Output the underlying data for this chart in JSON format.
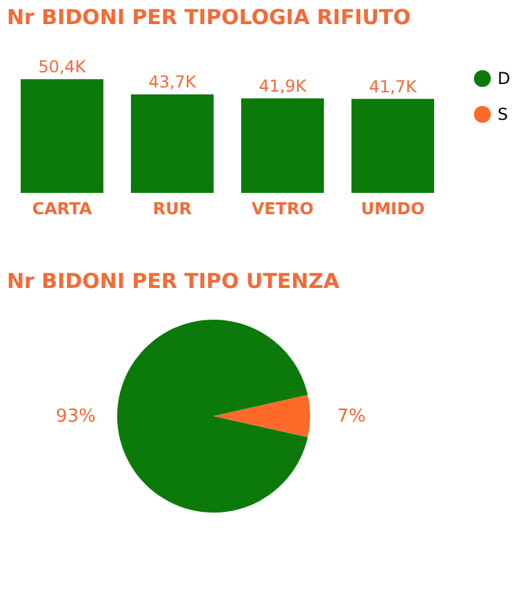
{
  "chart_data": [
    {
      "type": "bar",
      "title": "Nr BIDONI PER TIPOLOGIA RIFIUTO",
      "categories": [
        "CARTA",
        "RUR",
        "VETRO",
        "UMIDO"
      ],
      "values": [
        50.4,
        43.7,
        41.9,
        41.7
      ],
      "value_labels": [
        "50,4K",
        "43,7K",
        "41,9K",
        "41,7K"
      ],
      "color": "#0b7a0b"
    },
    {
      "type": "pie",
      "title": "Nr BIDONI PER TIPO UTENZA",
      "categories": [
        "D",
        "S"
      ],
      "values": [
        93,
        7
      ],
      "colors": [
        "#0b7a0b",
        "#ff6a2b"
      ],
      "value_labels": [
        "93%",
        "7%"
      ],
      "legend": "right"
    }
  ]
}
